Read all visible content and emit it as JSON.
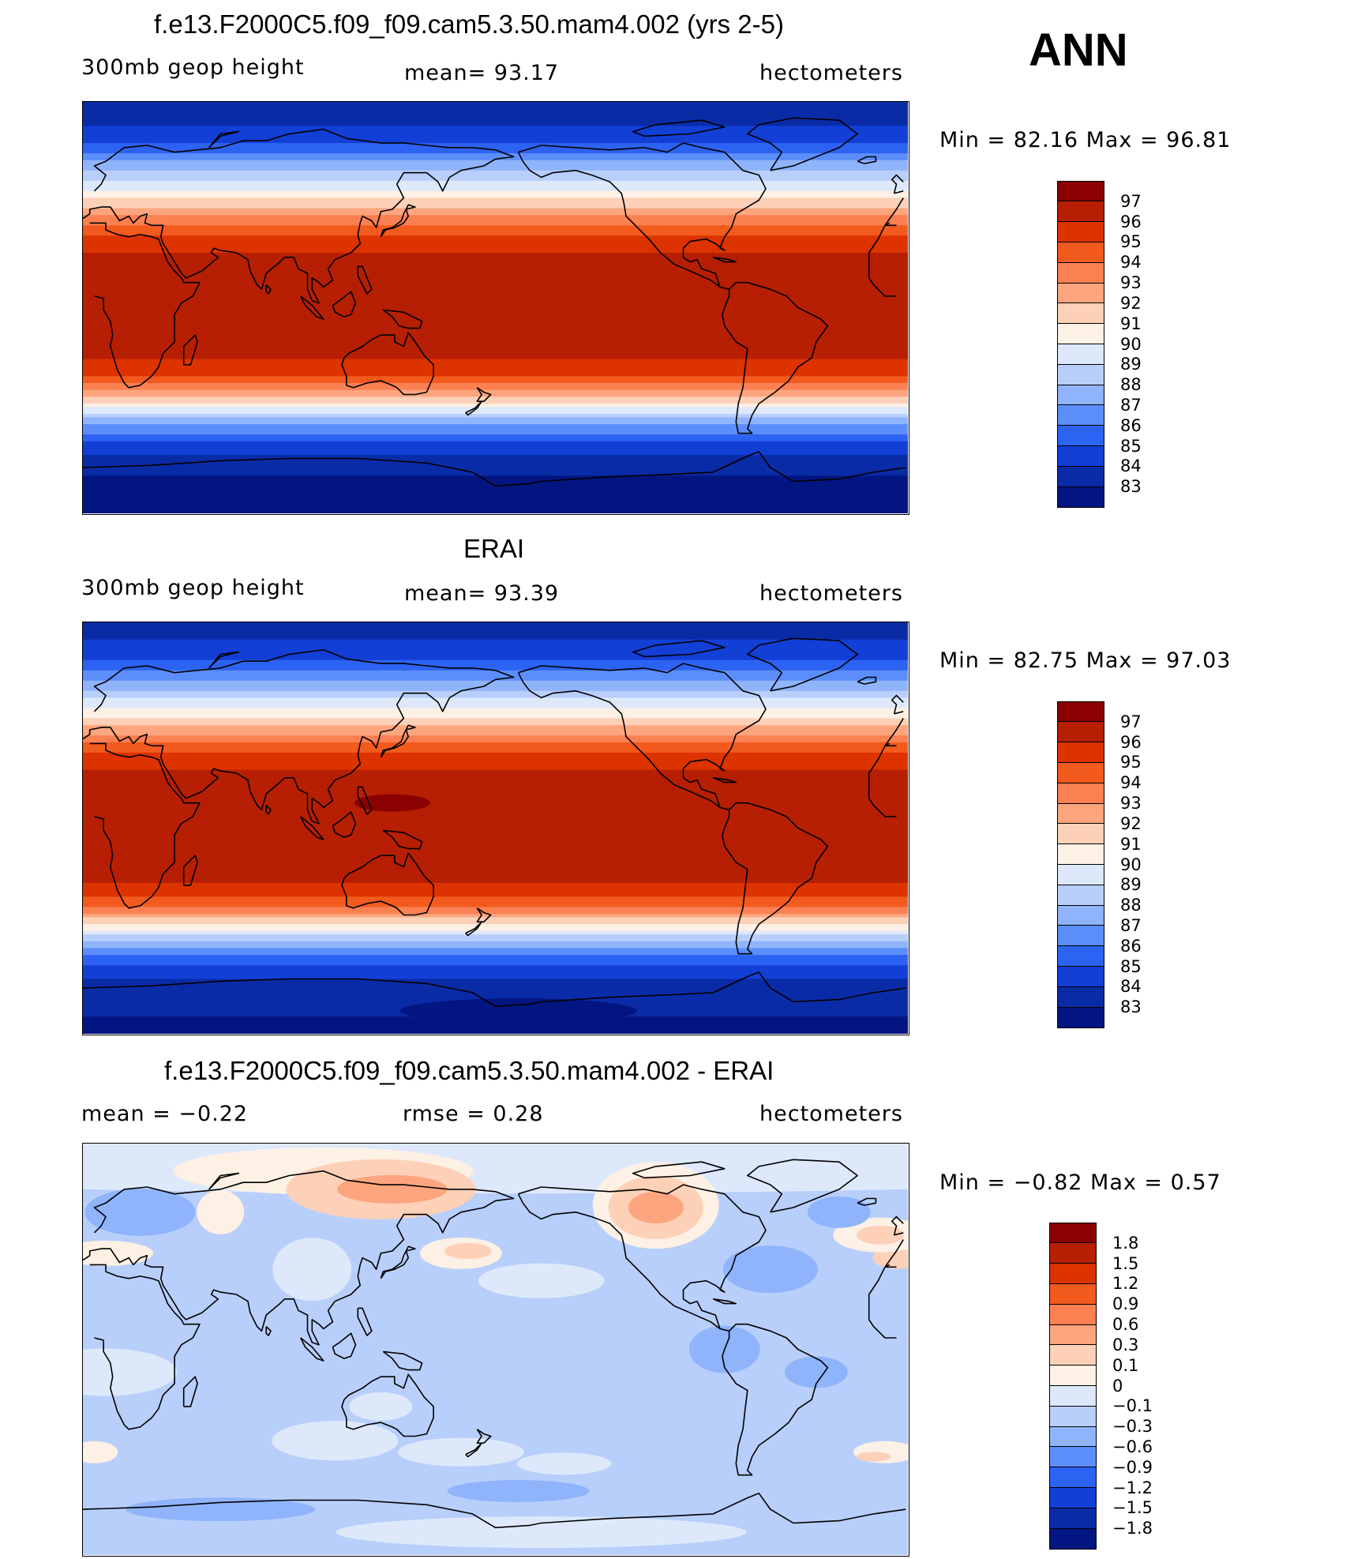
{
  "season": "ANN",
  "panels": [
    {
      "title": "f.e13.F2000C5.f09_f09.cam5.3.50.mam4.002 (yrs 2-5)",
      "left_label": "300mb geop height",
      "center_label": "mean=   93.17",
      "right_label": "hectometers",
      "minmax": "Min =    82.16  Max =    96.81",
      "levels": [
        "97",
        "96",
        "95",
        "94",
        "93",
        "92",
        "91",
        "90",
        "89",
        "88",
        "87",
        "86",
        "85",
        "84",
        "83"
      ],
      "colors": [
        "#8b0000",
        "#b61f03",
        "#dc3300",
        "#f25a1e",
        "#fb8052",
        "#fca57e",
        "#fdd0b8",
        "#fdf0e4",
        "#dde9fb",
        "#b8cffb",
        "#8fb4fb",
        "#5c8efb",
        "#2d63f2",
        "#123fd6",
        "#0a2ba6",
        "#031580"
      ],
      "field": [
        {
          "lat": 90,
          "v": 83.2
        },
        {
          "lat": 75,
          "v": 84.3
        },
        {
          "lat": 66,
          "v": 86.4
        },
        {
          "lat": 58,
          "v": 88.6
        },
        {
          "lat": 50,
          "v": 90.3
        },
        {
          "lat": 42,
          "v": 92.4
        },
        {
          "lat": 34,
          "v": 94.6
        },
        {
          "lat": 26,
          "v": 95.9
        },
        {
          "lat": 15,
          "v": 96.5
        },
        {
          "lat": 0,
          "v": 96.6
        },
        {
          "lat": -15,
          "v": 96.5
        },
        {
          "lat": -26,
          "v": 95.7
        },
        {
          "lat": -33,
          "v": 94.2
        },
        {
          "lat": -40,
          "v": 91.6
        },
        {
          "lat": -46,
          "v": 89.0
        },
        {
          "lat": -52,
          "v": 86.8
        },
        {
          "lat": -58,
          "v": 85.2
        },
        {
          "lat": -66,
          "v": 83.8
        },
        {
          "lat": -75,
          "v": 82.8
        },
        {
          "lat": -90,
          "v": 82.2
        }
      ]
    },
    {
      "title": "ERAI",
      "left_label": "300mb geop height",
      "center_label": "mean=   93.39",
      "right_label": "hectometers",
      "minmax": "Min =    82.75  Max =    97.03",
      "levels": [
        "97",
        "96",
        "95",
        "94",
        "93",
        "92",
        "91",
        "90",
        "89",
        "88",
        "87",
        "86",
        "85",
        "84",
        "83"
      ],
      "colors": [
        "#8b0000",
        "#b61f03",
        "#dc3300",
        "#f25a1e",
        "#fb8052",
        "#fca57e",
        "#fdd0b8",
        "#fdf0e4",
        "#dde9fb",
        "#b8cffb",
        "#8fb4fb",
        "#5c8efb",
        "#2d63f2",
        "#123fd6",
        "#0a2ba6",
        "#031580"
      ],
      "field": [
        {
          "lat": 90,
          "v": 83.4
        },
        {
          "lat": 75,
          "v": 84.5
        },
        {
          "lat": 66,
          "v": 86.5
        },
        {
          "lat": 58,
          "v": 88.7
        },
        {
          "lat": 50,
          "v": 90.5
        },
        {
          "lat": 42,
          "v": 92.6
        },
        {
          "lat": 34,
          "v": 94.8
        },
        {
          "lat": 26,
          "v": 96.0
        },
        {
          "lat": 15,
          "v": 96.6
        },
        {
          "lat": 0,
          "v": 96.7
        },
        {
          "lat": -15,
          "v": 96.6
        },
        {
          "lat": -26,
          "v": 95.9
        },
        {
          "lat": -33,
          "v": 94.5
        },
        {
          "lat": -40,
          "v": 91.9
        },
        {
          "lat": -46,
          "v": 89.3
        },
        {
          "lat": -52,
          "v": 87.0
        },
        {
          "lat": -58,
          "v": 85.4
        },
        {
          "lat": -66,
          "v": 84.0
        },
        {
          "lat": -75,
          "v": 83.2
        },
        {
          "lat": -90,
          "v": 82.8
        }
      ]
    },
    {
      "title": "f.e13.F2000C5.f09_f09.cam5.3.50.mam4.002 - ERAI",
      "left_label": "mean =    −0.22",
      "center_label": "rmse =     0.28",
      "right_label": "hectometers",
      "minmax": "Min =   −0.82  Max =      0.57",
      "levels": [
        "1.8",
        "1.5",
        "1.2",
        "0.9",
        "0.6",
        "0.3",
        "0.1",
        "0",
        "−0.1",
        "−0.3",
        "−0.6",
        "−0.9",
        "−1.2",
        "−1.5",
        "−1.8"
      ],
      "colors": [
        "#8b0000",
        "#b61f03",
        "#dc3300",
        "#f25a1e",
        "#fb8052",
        "#fca57e",
        "#fdd0b8",
        "#fdf0e4",
        "#dde9fb",
        "#b8cffb",
        "#8fb4fb",
        "#5c8efb",
        "#2d63f2",
        "#123fd6",
        "#0a2ba6",
        "#031580"
      ]
    }
  ]
}
